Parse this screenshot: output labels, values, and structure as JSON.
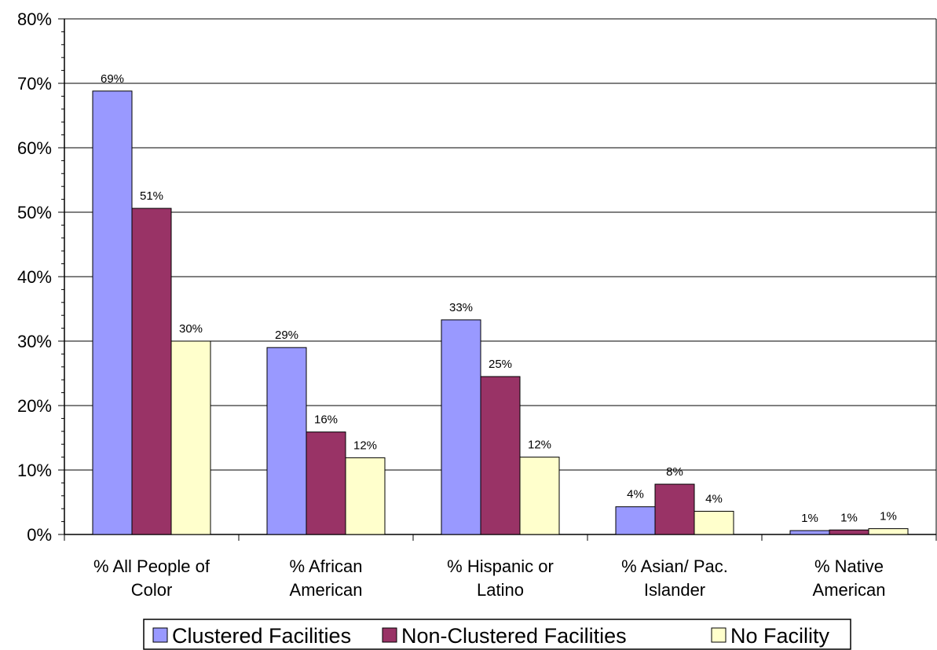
{
  "chart_data": {
    "type": "bar",
    "title": "",
    "xlabel": "",
    "ylabel": "",
    "ylim": [
      0,
      0.8
    ],
    "y_ticks": [
      "0%",
      "10%",
      "20%",
      "30%",
      "40%",
      "50%",
      "60%",
      "70%",
      "80%"
    ],
    "grid": true,
    "legend_position": "bottom",
    "categories": [
      [
        "% All People of",
        "Color"
      ],
      [
        "% African",
        "American"
      ],
      [
        "% Hispanic or",
        "Latino"
      ],
      [
        "% Asian/ Pac.",
        "Islander"
      ],
      [
        "% Native",
        "American"
      ]
    ],
    "series": [
      {
        "name": "Clustered Facilities",
        "color": "#9999ff",
        "values": [
          0.688,
          0.29,
          0.333,
          0.043,
          0.006
        ],
        "labels": [
          "69%",
          "29%",
          "33%",
          "4%",
          "1%"
        ]
      },
      {
        "name": "Non-Clustered Facilities",
        "color": "#993366",
        "values": [
          0.506,
          0.159,
          0.245,
          0.078,
          0.007
        ],
        "labels": [
          "51%",
          "16%",
          "25%",
          "8%",
          "1%"
        ]
      },
      {
        "name": "No Facility",
        "color": "#ffffcc",
        "values": [
          0.3,
          0.119,
          0.12,
          0.036,
          0.009
        ],
        "labels": [
          "30%",
          "12%",
          "12%",
          "4%",
          "1%"
        ]
      }
    ]
  }
}
